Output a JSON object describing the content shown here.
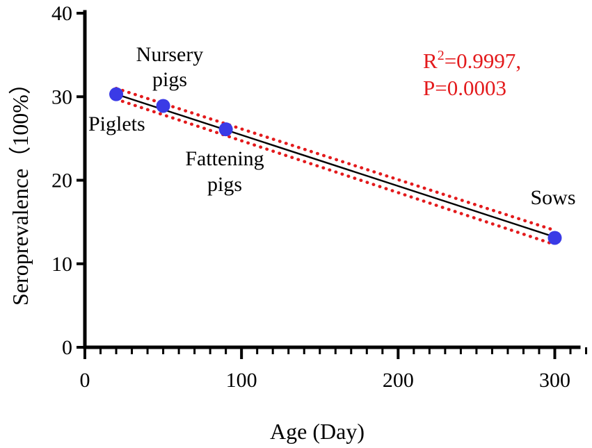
{
  "chart_data": {
    "type": "scatter",
    "title": "",
    "xlabel": "Age (Day)",
    "ylabel": "Seroprevalence（100%）",
    "xlim": [
      0,
      320
    ],
    "ylim": [
      0,
      40
    ],
    "xticks": [
      0,
      100,
      200,
      300
    ],
    "yticks": [
      0,
      10,
      20,
      30,
      40
    ],
    "x_minor_step": 10,
    "points": [
      {
        "label": "Piglets",
        "x": 20,
        "y": 30.3
      },
      {
        "label": "Nursery pigs",
        "x": 50,
        "y": 28.9
      },
      {
        "label": "Fattening pigs",
        "x": 90,
        "y": 26.1
      },
      {
        "label": "Sows",
        "x": 300,
        "y": 13.1
      }
    ],
    "fit": {
      "type": "linear",
      "x_range": [
        20,
        300
      ],
      "y_start": 30.3,
      "y_end": 13.2
    },
    "confidence_band": {
      "upper": [
        31.0,
        14.0
      ],
      "lower": [
        29.7,
        12.3
      ]
    },
    "annotation": {
      "r_label": "R",
      "r_sup": "2",
      "r_value": "=0.9997,",
      "p_text": "P=0.0003",
      "color": "#e31a1c"
    },
    "point_color": "#3a3ae6",
    "band_color": "#e31a1c"
  }
}
